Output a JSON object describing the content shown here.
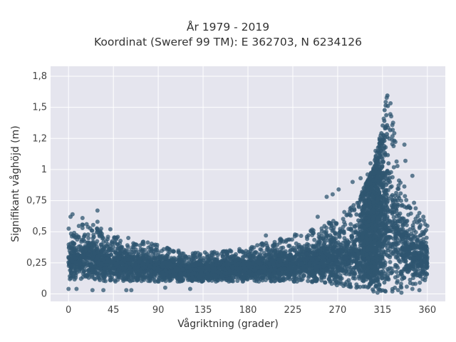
{
  "chart_data": {
    "type": "scatter",
    "title": "År 1979 - 2019",
    "subtitle": "Koordinat (Sweref 99 TM): E 362703, N 6234126",
    "xlabel": "Vågriktning (grader)",
    "ylabel": "Signifikant våghöjd (m)",
    "xlim": [
      -18,
      378
    ],
    "ylim": [
      -0.06,
      1.83
    ],
    "xticks": [
      0,
      45,
      90,
      135,
      180,
      225,
      270,
      315,
      360
    ],
    "xtick_labels": [
      "0",
      "45",
      "90",
      "135",
      "180",
      "225",
      "270",
      "315",
      "360"
    ],
    "yticks": [
      0,
      0.25,
      0.5,
      0.75,
      1,
      1.25,
      1.5,
      1.75
    ],
    "ytick_labels": [
      "0",
      "0,25",
      "0,5",
      "0,75",
      "1",
      "1,2",
      "1,5",
      "1,8"
    ],
    "grid": true,
    "marker_color": "#2f5670",
    "background_color": "#e5e5ee",
    "envelope": {
      "x": [
        0,
        20,
        45,
        60,
        90,
        120,
        150,
        180,
        210,
        240,
        270,
        290,
        305,
        315,
        320,
        325,
        335,
        350,
        360
      ],
      "y_low": [
        0.12,
        0.11,
        0.1,
        0.1,
        0.1,
        0.1,
        0.1,
        0.1,
        0.1,
        0.1,
        0.07,
        0.05,
        0.03,
        0.02,
        0.02,
        0.02,
        0.04,
        0.08,
        0.12
      ],
      "y_high": [
        0.55,
        0.58,
        0.48,
        0.44,
        0.4,
        0.33,
        0.34,
        0.37,
        0.45,
        0.5,
        0.62,
        0.75,
        1.0,
        1.35,
        1.68,
        1.45,
        0.95,
        0.68,
        0.55
      ]
    },
    "outliers": [
      {
        "x": 2,
        "y": 0.62
      },
      {
        "x": 4,
        "y": 0.64
      },
      {
        "x": 14,
        "y": 0.61
      },
      {
        "x": 29,
        "y": 0.58
      },
      {
        "x": 29,
        "y": 0.67
      },
      {
        "x": 42,
        "y": 0.52
      },
      {
        "x": 60,
        "y": 0.45
      },
      {
        "x": 75,
        "y": 0.42
      },
      {
        "x": 198,
        "y": 0.47
      },
      {
        "x": 250,
        "y": 0.62
      },
      {
        "x": 259,
        "y": 0.78
      },
      {
        "x": 265,
        "y": 0.8
      },
      {
        "x": 271,
        "y": 0.84
      },
      {
        "x": 285,
        "y": 0.9
      },
      {
        "x": 293,
        "y": 0.93
      },
      {
        "x": 300,
        "y": 0.96
      },
      {
        "x": 303,
        "y": 1.05
      },
      {
        "x": 308,
        "y": 1.15
      },
      {
        "x": 312,
        "y": 1.25
      },
      {
        "x": 337,
        "y": 1.2
      },
      {
        "x": 338,
        "y": 1.07
      },
      {
        "x": 345,
        "y": 0.95
      },
      {
        "x": 352,
        "y": 0.65
      },
      {
        "x": 356,
        "y": 0.62
      },
      {
        "x": 0,
        "y": 0.04
      },
      {
        "x": 8,
        "y": 0.04
      },
      {
        "x": 24,
        "y": 0.03
      },
      {
        "x": 35,
        "y": 0.03
      },
      {
        "x": 58,
        "y": 0.03
      },
      {
        "x": 63,
        "y": 0.03
      },
      {
        "x": 97,
        "y": 0.05
      },
      {
        "x": 122,
        "y": 0.04
      },
      {
        "x": 306,
        "y": 0.02
      },
      {
        "x": 310,
        "y": 0.01
      },
      {
        "x": 318,
        "y": 0.02
      },
      {
        "x": 334,
        "y": 0.01
      },
      {
        "x": 345,
        "y": 0.04
      },
      {
        "x": 352,
        "y": 0.03
      }
    ]
  }
}
